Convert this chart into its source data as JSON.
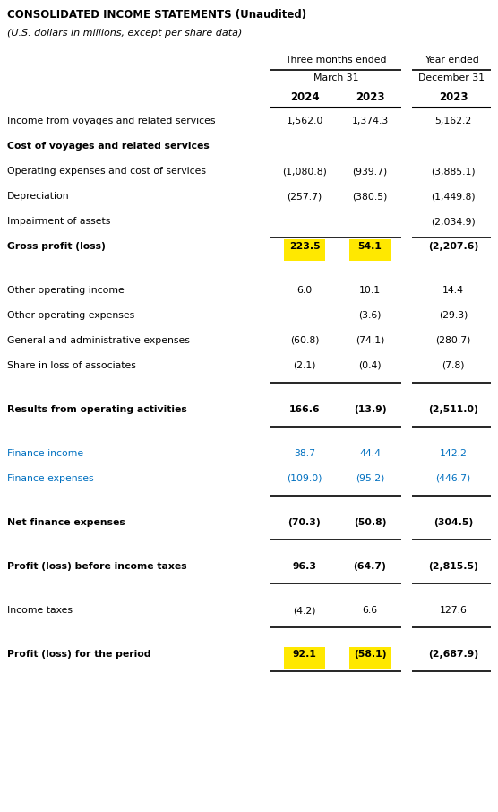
{
  "title1": "CONSOLIDATED INCOME STATEMENTS (Unaudited)",
  "title2": "(U.S. dollars in millions, except per share data)",
  "col_header1": "Three months ended",
  "col_header2": "Year ended",
  "col_sub1": "March 31",
  "col_sub2": "December 31",
  "col_years": [
    "2024",
    "2023",
    "2023"
  ],
  "rows": [
    {
      "label": "Income from voyages and related services",
      "bold": false,
      "values": [
        "1,562.0",
        "1,374.3",
        "5,162.2"
      ],
      "highlight": [
        false,
        false,
        false
      ],
      "line_above": false,
      "line_below": false,
      "blue": false,
      "spacer": false,
      "spacer_size": 0
    },
    {
      "label": "Cost of voyages and related services",
      "bold": true,
      "values": [
        "",
        "",
        ""
      ],
      "highlight": [
        false,
        false,
        false
      ],
      "line_above": false,
      "line_below": false,
      "blue": false,
      "spacer": false,
      "spacer_size": 0
    },
    {
      "label": "Operating expenses and cost of services",
      "bold": false,
      "values": [
        "(1,080.8)",
        "(939.7)",
        "(3,885.1)"
      ],
      "highlight": [
        false,
        false,
        false
      ],
      "line_above": false,
      "line_below": false,
      "blue": false,
      "spacer": false,
      "spacer_size": 0
    },
    {
      "label": "Depreciation",
      "bold": false,
      "values": [
        "(257.7)",
        "(380.5)",
        "(1,449.8)"
      ],
      "highlight": [
        false,
        false,
        false
      ],
      "line_above": false,
      "line_below": false,
      "blue": false,
      "spacer": false,
      "spacer_size": 0
    },
    {
      "label": "Impairment of assets",
      "bold": false,
      "values": [
        "",
        "",
        "(2,034.9)"
      ],
      "highlight": [
        false,
        false,
        false
      ],
      "line_above": false,
      "line_below": false,
      "blue": false,
      "spacer": false,
      "spacer_size": 0
    },
    {
      "label": "Gross profit (loss)",
      "bold": true,
      "values": [
        "223.5",
        "54.1",
        "(2,207.6)"
      ],
      "highlight": [
        true,
        true,
        false
      ],
      "line_above": true,
      "line_below": false,
      "blue": false,
      "spacer": false,
      "spacer_size": 0
    },
    {
      "label": "",
      "bold": false,
      "values": [
        "",
        "",
        ""
      ],
      "highlight": [
        false,
        false,
        false
      ],
      "line_above": false,
      "line_below": false,
      "blue": false,
      "spacer": true,
      "spacer_size": 1.5
    },
    {
      "label": "Other operating income",
      "bold": false,
      "values": [
        "6.0",
        "10.1",
        "14.4"
      ],
      "highlight": [
        false,
        false,
        false
      ],
      "line_above": false,
      "line_below": false,
      "blue": false,
      "spacer": false,
      "spacer_size": 0
    },
    {
      "label": "Other operating expenses",
      "bold": false,
      "values": [
        "",
        "(3.6)",
        "(29.3)"
      ],
      "highlight": [
        false,
        false,
        false
      ],
      "line_above": false,
      "line_below": false,
      "blue": false,
      "spacer": false,
      "spacer_size": 0
    },
    {
      "label": "General and administrative expenses",
      "bold": false,
      "values": [
        "(60.8)",
        "(74.1)",
        "(280.7)"
      ],
      "highlight": [
        false,
        false,
        false
      ],
      "line_above": false,
      "line_below": false,
      "blue": false,
      "spacer": false,
      "spacer_size": 0
    },
    {
      "label": "Share in loss of associates",
      "bold": false,
      "values": [
        "(2.1)",
        "(0.4)",
        "(7.8)"
      ],
      "highlight": [
        false,
        false,
        false
      ],
      "line_above": false,
      "line_below": true,
      "blue": false,
      "spacer": false,
      "spacer_size": 0
    },
    {
      "label": "",
      "bold": false,
      "values": [
        "",
        "",
        ""
      ],
      "highlight": [
        false,
        false,
        false
      ],
      "line_above": false,
      "line_below": false,
      "blue": false,
      "spacer": true,
      "spacer_size": 1.5
    },
    {
      "label": "Results from operating activities",
      "bold": true,
      "values": [
        "166.6",
        "(13.9)",
        "(2,511.0)"
      ],
      "highlight": [
        false,
        false,
        false
      ],
      "line_above": false,
      "line_below": true,
      "blue": false,
      "spacer": false,
      "spacer_size": 0
    },
    {
      "label": "",
      "bold": false,
      "values": [
        "",
        "",
        ""
      ],
      "highlight": [
        false,
        false,
        false
      ],
      "line_above": false,
      "line_below": false,
      "blue": false,
      "spacer": true,
      "spacer_size": 1.5
    },
    {
      "label": "Finance income",
      "bold": false,
      "values": [
        "38.7",
        "44.4",
        "142.2"
      ],
      "highlight": [
        false,
        false,
        false
      ],
      "line_above": false,
      "line_below": false,
      "blue": true,
      "spacer": false,
      "spacer_size": 0
    },
    {
      "label": "Finance expenses",
      "bold": false,
      "values": [
        "(109.0)",
        "(95.2)",
        "(446.7)"
      ],
      "highlight": [
        false,
        false,
        false
      ],
      "line_above": false,
      "line_below": true,
      "blue": true,
      "spacer": false,
      "spacer_size": 0
    },
    {
      "label": "",
      "bold": false,
      "values": [
        "",
        "",
        ""
      ],
      "highlight": [
        false,
        false,
        false
      ],
      "line_above": false,
      "line_below": false,
      "blue": false,
      "spacer": true,
      "spacer_size": 1.5
    },
    {
      "label": "Net finance expenses",
      "bold": true,
      "values": [
        "(70.3)",
        "(50.8)",
        "(304.5)"
      ],
      "highlight": [
        false,
        false,
        false
      ],
      "line_above": false,
      "line_below": true,
      "blue": false,
      "spacer": false,
      "spacer_size": 0
    },
    {
      "label": "",
      "bold": false,
      "values": [
        "",
        "",
        ""
      ],
      "highlight": [
        false,
        false,
        false
      ],
      "line_above": false,
      "line_below": false,
      "blue": false,
      "spacer": true,
      "spacer_size": 1.5
    },
    {
      "label": "Profit (loss) before income taxes",
      "bold": true,
      "values": [
        "96.3",
        "(64.7)",
        "(2,815.5)"
      ],
      "highlight": [
        false,
        false,
        false
      ],
      "line_above": false,
      "line_below": true,
      "blue": false,
      "spacer": false,
      "spacer_size": 0
    },
    {
      "label": "",
      "bold": false,
      "values": [
        "",
        "",
        ""
      ],
      "highlight": [
        false,
        false,
        false
      ],
      "line_above": false,
      "line_below": false,
      "blue": false,
      "spacer": true,
      "spacer_size": 1.5
    },
    {
      "label": "Income taxes",
      "bold": false,
      "values": [
        "(4.2)",
        "6.6",
        "127.6"
      ],
      "highlight": [
        false,
        false,
        false
      ],
      "line_above": false,
      "line_below": true,
      "blue": false,
      "spacer": false,
      "spacer_size": 0
    },
    {
      "label": "",
      "bold": false,
      "values": [
        "",
        "",
        ""
      ],
      "highlight": [
        false,
        false,
        false
      ],
      "line_above": false,
      "line_below": false,
      "blue": false,
      "spacer": true,
      "spacer_size": 1.5
    },
    {
      "label": "Profit (loss) for the period",
      "bold": true,
      "values": [
        "92.1",
        "(58.1)",
        "(2,687.9)"
      ],
      "highlight": [
        true,
        true,
        false
      ],
      "line_above": false,
      "line_below": true,
      "blue": false,
      "spacer": false,
      "spacer_size": 0
    }
  ],
  "highlight_color": "#FFE800",
  "text_color": "#000000",
  "blue_color": "#0070C0",
  "bg_color": "#FFFFFF",
  "fig_width": 5.56,
  "fig_height": 9.06,
  "dpi": 100
}
